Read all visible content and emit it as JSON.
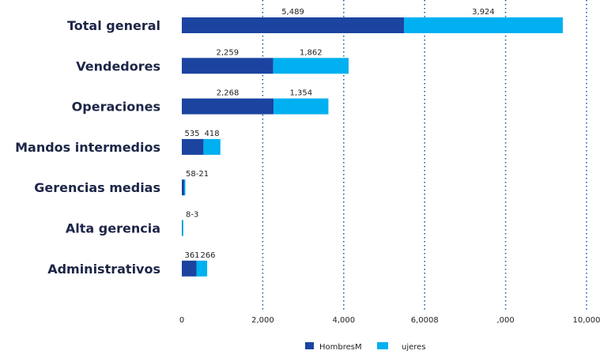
{
  "colors": {
    "hombres": "#1b44a0",
    "mujeres": "#00b0f0",
    "grid": "#1b5fb5"
  },
  "chart_data": {
    "type": "bar",
    "orientation": "horizontal",
    "stacked": true,
    "title": "",
    "xlabel": "",
    "ylabel": "",
    "xlim": [
      0,
      10000
    ],
    "grid": "vertical dotted",
    "legend_position": "bottom",
    "categories": [
      "Total general",
      "Vendedores",
      "Operaciones",
      "Mandos intermedios",
      "Gerencias medias",
      "Alta gerencia",
      "Administrativos"
    ],
    "series": [
      {
        "name": "HombresM",
        "values": [
          5489,
          2259,
          2268,
          535,
          58,
          8,
          361
        ]
      },
      {
        "name": "ujeres",
        "values": [
          3924,
          1862,
          1354,
          418,
          21,
          3,
          266
        ]
      }
    ],
    "data_labels": [
      [
        "5,489",
        "3,924"
      ],
      [
        "2,259",
        "1,862"
      ],
      [
        "2,268",
        "1,354"
      ],
      [
        "535",
        "418"
      ],
      [
        "58-21"
      ],
      [
        "8-3"
      ],
      [
        "361",
        "266"
      ]
    ],
    "tick_labels": [
      "0",
      "2,000",
      "4,000",
      "6,0008",
      ",000",
      "10,000"
    ]
  }
}
